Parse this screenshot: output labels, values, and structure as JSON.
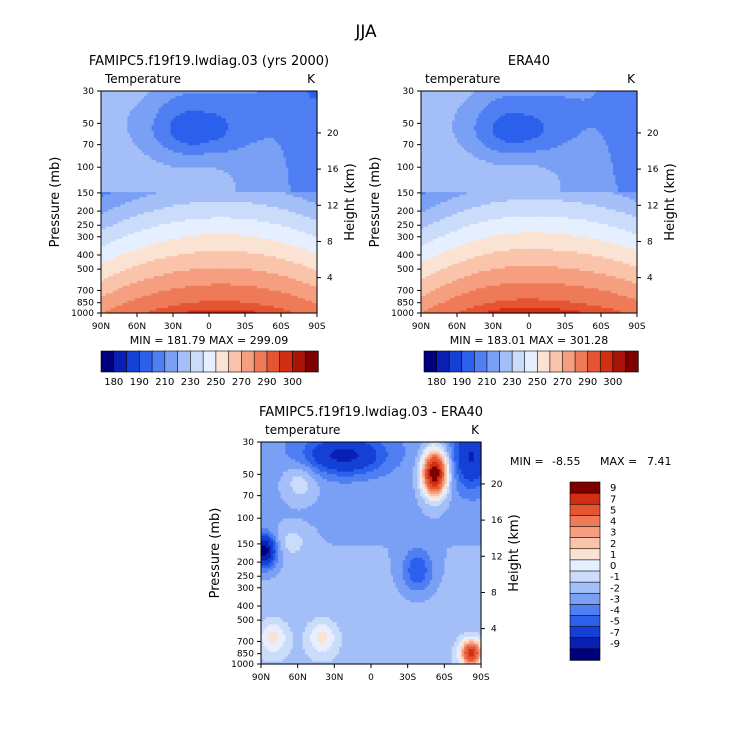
{
  "figure_title": "JJA",
  "colors": {
    "absolute": [
      "#00007f",
      "#0a1fb3",
      "#1540d6",
      "#2b60ec",
      "#4f7ff2",
      "#7aa0f5",
      "#a4bff8",
      "#cbdcfb",
      "#e6efff",
      "#fbe3d3",
      "#f9c4aa",
      "#f59f80",
      "#ee7a58",
      "#e55532",
      "#d22f12",
      "#a8130a",
      "#7d0000"
    ],
    "difference": [
      "#00007f",
      "#0a1fb3",
      "#1540d6",
      "#2b60ec",
      "#4f7ff2",
      "#7aa0f5",
      "#a4bff8",
      "#cbdcfb",
      "#e6efff",
      "#fbe3d3",
      "#f9c4aa",
      "#f59f80",
      "#ee7a58",
      "#e55532",
      "#d22f12",
      "#7d0000"
    ]
  },
  "chart_data": [
    {
      "type": "heatmap",
      "id": "model",
      "title": "FAMIPC5.f19f19.lwdiag.03 (yrs 2000)",
      "left_label": "Temperature",
      "right_label": "K",
      "ylabel": "Pressure (mb)",
      "ylabel_right": "Height (km)",
      "xticks": [
        "90N",
        "60N",
        "30N",
        "0",
        "30S",
        "60S",
        "90S"
      ],
      "x_values": [
        90,
        60,
        30,
        0,
        -30,
        -60,
        -90
      ],
      "yticks": [
        30,
        50,
        70,
        100,
        150,
        200,
        250,
        300,
        400,
        500,
        700,
        850,
        1000
      ],
      "height_ticks": [
        20,
        16,
        12,
        8,
        4
      ],
      "ylim_mb": [
        1000,
        30
      ],
      "min": 181.79,
      "max": 299.09,
      "stats_text": "MIN = 181.79   MAX = 299.09",
      "levels": [
        180,
        185,
        190,
        200,
        210,
        220,
        230,
        240,
        250,
        260,
        270,
        280,
        290,
        295,
        300
      ],
      "colorbar_labels": [
        "180",
        "190",
        "210",
        "230",
        "250",
        "270",
        "290",
        "300"
      ],
      "colorbar_label_index": [
        0,
        2,
        4,
        6,
        8,
        10,
        12,
        14
      ]
    },
    {
      "type": "heatmap",
      "id": "obs",
      "title": "ERA40",
      "left_label": "temperature",
      "right_label": "K",
      "ylabel": "Pressure (mb)",
      "ylabel_right": "Height (km)",
      "xticks": [
        "90N",
        "60N",
        "30N",
        "0",
        "30S",
        "60S",
        "90S"
      ],
      "x_values": [
        90,
        60,
        30,
        0,
        -30,
        -60,
        -90
      ],
      "yticks": [
        30,
        50,
        70,
        100,
        150,
        200,
        250,
        300,
        400,
        500,
        700,
        850,
        1000
      ],
      "height_ticks": [
        20,
        16,
        12,
        8,
        4
      ],
      "ylim_mb": [
        1000,
        30
      ],
      "min": 183.01,
      "max": 301.28,
      "stats_text": "MIN = 183.01   MAX = 301.28",
      "levels": [
        180,
        185,
        190,
        200,
        210,
        220,
        230,
        240,
        250,
        260,
        270,
        280,
        290,
        295,
        300
      ],
      "colorbar_labels": [
        "180",
        "190",
        "210",
        "230",
        "250",
        "270",
        "290",
        "300"
      ],
      "colorbar_label_index": [
        0,
        2,
        4,
        6,
        8,
        10,
        12,
        14
      ]
    },
    {
      "type": "heatmap",
      "id": "diff",
      "title": "FAMIPC5.f19f19.lwdiag.03 - ERA40",
      "left_label": "temperature",
      "right_label": "K",
      "ylabel": "Pressure (mb)",
      "ylabel_right": "Height (km)",
      "xticks": [
        "90N",
        "60N",
        "30N",
        "0",
        "30S",
        "60S",
        "90S"
      ],
      "x_values": [
        90,
        60,
        30,
        0,
        -30,
        -60,
        -90
      ],
      "yticks": [
        30,
        50,
        70,
        100,
        150,
        200,
        250,
        300,
        400,
        500,
        700,
        850,
        1000
      ],
      "height_ticks": [
        20,
        16,
        12,
        8,
        4
      ],
      "ylim_mb": [
        1000,
        30
      ],
      "min": -8.55,
      "max": 7.41,
      "min_label": "MIN =",
      "min_text": "-8.55",
      "max_label": "MAX =",
      "max_text": "7.41",
      "levels": [
        -9,
        -7,
        -5,
        -4,
        -3,
        -2,
        -1,
        0,
        1,
        2,
        3,
        4,
        5,
        7,
        9
      ],
      "colorbar_labels": [
        "9",
        "7",
        "5",
        "4",
        "3",
        "2",
        "1",
        "0",
        "-1",
        "-2",
        "-3",
        "-4",
        "-5",
        "-7",
        "-9"
      ]
    }
  ]
}
